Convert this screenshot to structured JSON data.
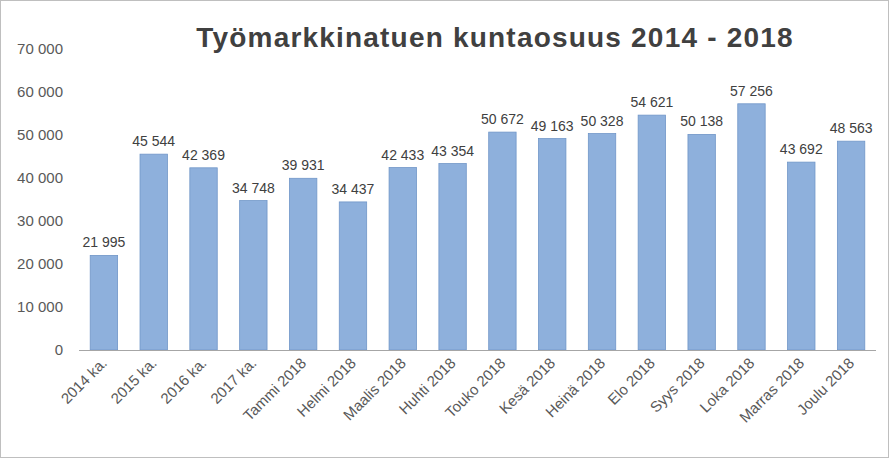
{
  "chart_data": {
    "type": "bar",
    "title": "Työmarkkinatuen kuntaosuus 2014 - 2018",
    "categories": [
      "2014 ka.",
      "2015 ka.",
      "2016 ka.",
      "2017 ka.",
      "Tammi 2018",
      "Helmi 2018",
      "Maalis 2018",
      "Huhti 2018",
      "Touko 2018",
      "Kesä 2018",
      "Heinä 2018",
      "Elo 2018",
      "Syys 2018",
      "Loka 2018",
      "Marras 2018",
      "Joulu 2018"
    ],
    "values": [
      21995,
      45544,
      42369,
      34748,
      39931,
      34437,
      42433,
      43354,
      50672,
      49163,
      50328,
      54621,
      50138,
      57256,
      43692,
      48563
    ],
    "value_labels": [
      "21 995",
      "45 544",
      "42 369",
      "34 748",
      "39 931",
      "34 437",
      "42 433",
      "43 354",
      "50 672",
      "49 163",
      "50 328",
      "54 621",
      "50 138",
      "57 256",
      "43 692",
      "48 563"
    ],
    "color": "#8eb0dc",
    "ylim": [
      0,
      70000
    ],
    "yticks": [
      {
        "value": 0,
        "label": "0"
      },
      {
        "value": 10000,
        "label": "10 000"
      },
      {
        "value": 20000,
        "label": "20 000"
      },
      {
        "value": 30000,
        "label": "30 000"
      },
      {
        "value": 40000,
        "label": "40 000"
      },
      {
        "value": 50000,
        "label": "50 000"
      },
      {
        "value": 60000,
        "label": "60 000"
      },
      {
        "value": 70000,
        "label": "70 000"
      }
    ],
    "grid": false,
    "data_labels": true
  }
}
